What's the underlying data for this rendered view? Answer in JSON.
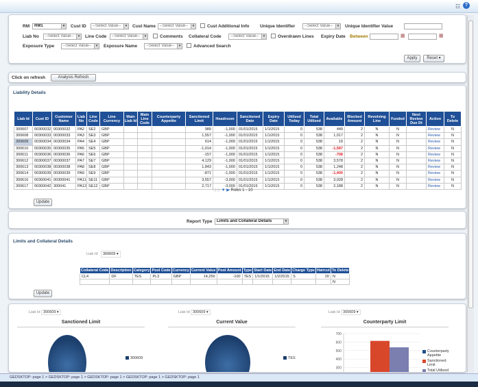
{
  "topbar": {
    "icons": [
      "preferences-icon",
      "help-icon"
    ]
  },
  "filters": {
    "rm_label": "RM",
    "rm_value": "RM1",
    "cust_id_label": "Cust ID",
    "cust_name_label": "Cust Name",
    "cust_additional_label": "Cust Additional Info",
    "unique_identifier_label": "Unique Identifier",
    "unique_identifier_value_label": "Unique Identifier Value",
    "liab_no_label": "Liab No",
    "line_code_label": "Line Code",
    "comments_label": "Comments",
    "collateral_code_label": "Collateral Code",
    "overdrawn_label": "Overdrawn Lines",
    "expiry_date_label": "Expiry Date",
    "between_label": "Between",
    "exposure_type_label": "Exposure Type",
    "exposure_name_label": "Exposure Name",
    "advanced_search_label": "Advanced Search",
    "placeholder": "--Select Value--",
    "apply": "Apply",
    "reset": "Reset"
  },
  "refresh": {
    "label": "Click on refresh",
    "button": "Analysis Refresh"
  },
  "liability": {
    "title": "Liability Details",
    "columns": [
      "Liab Id",
      "Cust ID",
      "Customer Name",
      "Liab No",
      "Line Code",
      "Line Currency",
      "Main Liab Id",
      "Main Line Code",
      "Counterparty Appetite",
      "Sanctioned Limit",
      "Headroom",
      "Sanctioned Date",
      "Expiry Date",
      "Utilized Today",
      "Total Utilized",
      "Available",
      "Blocked Amount",
      "Revolving Line",
      "Funded",
      "Next Review Due Dt",
      "Action",
      "To Delete"
    ],
    "rows": [
      [
        "300607",
        "00300032",
        "00300032",
        "PA2",
        "SE2",
        "GBP",
        "",
        "",
        "",
        "989",
        "-1,000",
        "01/01/2015",
        "1/1/2015",
        "0",
        "538",
        "449",
        "2",
        "N",
        "N",
        "",
        "Review",
        "N"
      ],
      [
        "300608",
        "00300033",
        "00300033",
        "PA3",
        "SE3",
        "GBP",
        "",
        "",
        "",
        "1,557",
        "-1,000",
        "01/01/2015",
        "1/1/2015",
        "0",
        "538",
        "1,017",
        "2",
        "N",
        "N",
        "",
        "Review",
        "N"
      ],
      [
        "300609",
        "00300034",
        "00300034",
        "PA4",
        "SE4",
        "GBP",
        "",
        "",
        "",
        "614",
        "-1,000",
        "01/01/2015",
        "1/1/2015",
        "0",
        "538",
        "19",
        "2",
        "N",
        "N",
        "",
        "Review",
        "N"
      ],
      [
        "300610",
        "00300035",
        "00300035",
        "PA5",
        "SE5",
        "GBP",
        "",
        "",
        "",
        "-1,014",
        "-1,000",
        "01/01/2015",
        "1/1/2015",
        "0",
        "538",
        "-1,587",
        "2",
        "N",
        "N",
        "",
        "Review",
        "N"
      ],
      [
        "300611",
        "00300036",
        "00300036",
        "PA6",
        "SE6",
        "GBP",
        "",
        "",
        "",
        "-157",
        "-1,000",
        "01/01/2015",
        "1/1/2015",
        "0",
        "538",
        "-708",
        "2",
        "N",
        "N",
        "",
        "Review",
        "N"
      ],
      [
        "300612",
        "00300037",
        "00300037",
        "PA7",
        "SE7",
        "GBP",
        "",
        "",
        "",
        "4,129",
        "-1,000",
        "01/01/2015",
        "1/1/2015",
        "0",
        "538",
        "3,578",
        "2",
        "N",
        "N",
        "",
        "Review",
        "N"
      ],
      [
        "300613",
        "00300038",
        "00300038",
        "PA8",
        "SE8",
        "GBP",
        "",
        "",
        "",
        "1,843",
        "-1,000",
        "01/01/2015",
        "1/1/2015",
        "0",
        "538",
        "1,248",
        "2",
        "N",
        "N",
        "",
        "Review",
        "N"
      ],
      [
        "300614",
        "00300039",
        "00300039",
        "PA9",
        "SE9",
        "GBP",
        "",
        "",
        "",
        "-871",
        "-1,000",
        "01/01/2015",
        "1/1/2015",
        "0",
        "538",
        "-1,400",
        "2",
        "N",
        "N",
        "",
        "Review",
        "N"
      ],
      [
        "300616",
        "00300041",
        "00300041",
        "PA11",
        "SE11",
        "GBP",
        "",
        "",
        "",
        "3,557",
        "-3,000",
        "01/01/2015",
        "1/1/2015",
        "0",
        "538",
        "3,028",
        "2",
        "N",
        "N",
        "",
        "Review",
        "N"
      ],
      [
        "300617",
        "00300042",
        "300041",
        "PA12",
        "SE12",
        "GBP",
        "",
        "",
        "",
        "2,717",
        "-3,000",
        "01/01/2015",
        "1/1/2015",
        "0",
        "538",
        "2,188",
        "2",
        "N",
        "N",
        "",
        "Review",
        "N"
      ]
    ],
    "selected_row": 2,
    "pager": "Rows 1 - 10",
    "update": "Update"
  },
  "report": {
    "label": "Report Type",
    "value": "Limits and Collateral Details"
  },
  "collateral": {
    "title": "Limits and Collateral Details",
    "liab_id_label": "Liab Id",
    "liab_id_value": "300609",
    "columns": [
      "Collateral Code",
      "Description",
      "Category",
      "Pool Code",
      "Currency",
      "Current Value",
      "Pool Amount",
      "Type",
      "Start Date",
      "End Date",
      "Charge Type",
      "Haircut",
      "To Delete"
    ],
    "rows": [
      [
        "CL4",
        "DF",
        "TES",
        "PL3",
        "GBP",
        "14,250",
        "-100",
        "TES",
        "1/1/2015",
        "1/2/2015",
        "S",
        "20",
        "N"
      ],
      [
        "",
        "",
        "",
        "",
        "",
        "",
        "",
        "",
        "",
        "",
        "",
        "",
        "N"
      ]
    ],
    "update": "Update"
  },
  "charts": {
    "liab_id_label": "Liab Id",
    "liab_id_value": "300609"
  },
  "chart_data": [
    {
      "type": "pie",
      "title": "Sanctioned Limit",
      "labels": [
        "300609"
      ],
      "values": [
        614
      ]
    },
    {
      "type": "pie",
      "title": "Current Value",
      "labels": [
        "TES"
      ],
      "values": [
        14250
      ]
    },
    {
      "type": "bar",
      "title": "Counterparty Limit",
      "categories": [
        "300609"
      ],
      "series": [
        {
          "name": "Counterparty Appetite",
          "values": [
            0
          ],
          "color": "#1f4f8a"
        },
        {
          "name": "Sanctioned Limit",
          "values": [
            614
          ],
          "color": "#d9472b"
        },
        {
          "name": "Total Utilized",
          "values": [
            538
          ],
          "color": "#7a7fb0"
        }
      ],
      "yticks": [
        200,
        300,
        400,
        500,
        600,
        700
      ],
      "ylim": [
        0,
        700
      ]
    }
  ],
  "footer": {
    "breadcrumb": "GEDSKTOP: page 1 > GEDSKTOP: page 1 > GEDSKTOP: page 1 > GEDSKTOP: page 1 > GEDSKTOP: page 1"
  }
}
